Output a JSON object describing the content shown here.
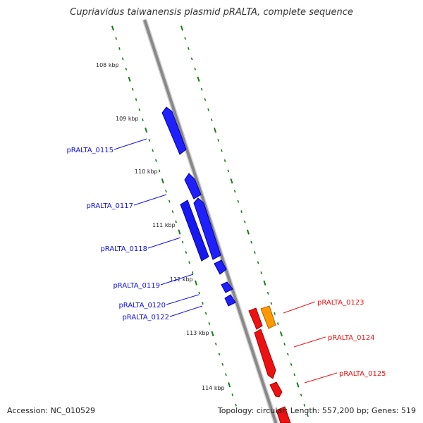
{
  "title": "Cupriavidus taiwanensis plasmid pRALTA, complete sequence",
  "footer": {
    "accession": "Accession: NC_010529",
    "summary": "Topology: circular; Length: 557,200 bp; Genes: 519"
  },
  "colors": {
    "backbone": "#808080",
    "tick": "#1a7a1a",
    "gene_forward_strand": "#1010ee",
    "gene_reverse_strand": "#ee1111",
    "gene_highlight": "#ff9900"
  },
  "scale_labels": [
    "108 kbp",
    "109 kbp",
    "110 kbp",
    "111 kbp",
    "112 kbp",
    "113 kbp",
    "114 kbp"
  ],
  "genes": {
    "left": [
      "pRALTA_0115",
      "pRALTA_0117",
      "pRALTA_0118",
      "pRALTA_0119",
      "pRALTA_0120",
      "pRALTA_0122"
    ],
    "right": [
      "pRALTA_0123",
      "pRALTA_0124",
      "pRALTA_0125"
    ]
  }
}
